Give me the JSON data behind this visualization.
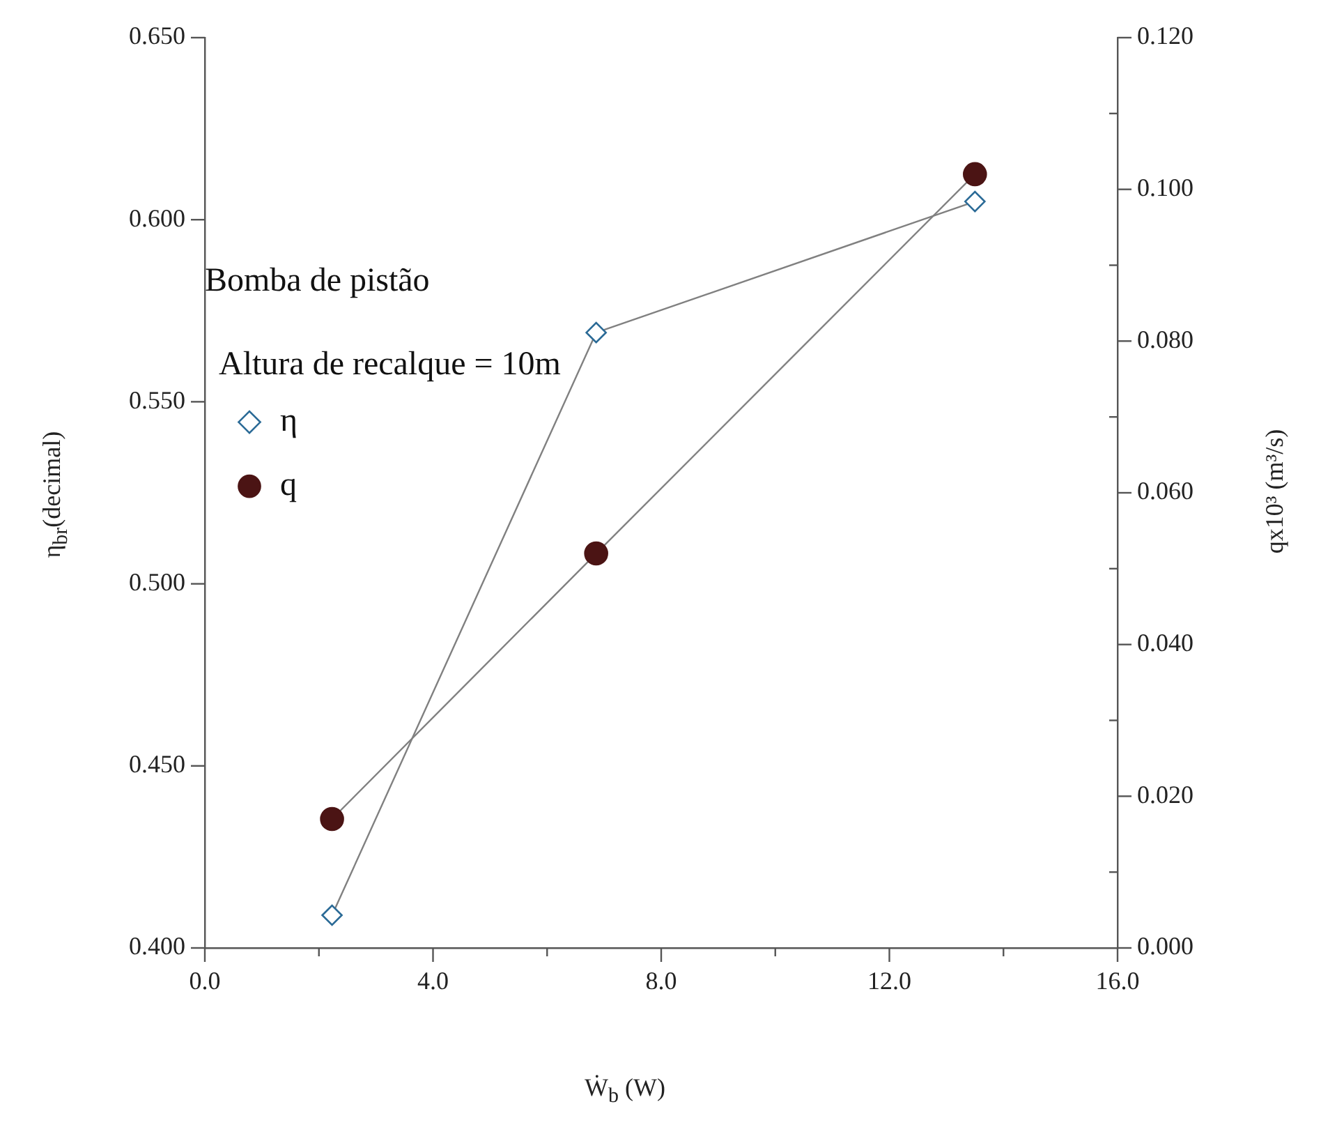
{
  "chart_data": {
    "type": "line",
    "xlabel": "Ẇ$_{b}$ (W)",
    "ylabel": "η$_{br}$(decimal)",
    "y2label": "qx10³ (m³/s)",
    "legend_title": "Bomba de pistão",
    "annotations": [
      "Altura de recalque = 10m"
    ],
    "legend": "left",
    "x": [
      2.23,
      6.86,
      13.5
    ],
    "series": [
      {
        "name": "η",
        "type": "line",
        "marker": "diamond",
        "color": "#2a6a96",
        "values": [
          0.409,
          0.569,
          0.605
        ]
      },
      {
        "name": "q",
        "type": "line",
        "marker": "circle",
        "axis": "y2",
        "color": "#4b1414",
        "values": [
          0.017,
          0.052,
          0.102
        ]
      }
    ],
    "xlim": [
      0,
      16
    ],
    "xticks": [
      {
        "value": 0,
        "label": "0.0"
      },
      {
        "value": 2,
        "label": null
      },
      {
        "value": 4,
        "label": "4.0"
      },
      {
        "value": 6,
        "label": null
      },
      {
        "value": 8,
        "label": "8.0"
      },
      {
        "value": 10,
        "label": null
      },
      {
        "value": 12,
        "label": "12.0"
      },
      {
        "value": 14,
        "label": null
      },
      {
        "value": 16,
        "label": "16.0"
      }
    ],
    "ylim": [
      0.4,
      0.65
    ],
    "yticks": [
      {
        "value": 0.4,
        "label": "0.400"
      },
      {
        "value": 0.45,
        "label": "0.450"
      },
      {
        "value": 0.5,
        "label": "0.500"
      },
      {
        "value": 0.55,
        "label": "0.550"
      },
      {
        "value": 0.6,
        "label": "0.600"
      },
      {
        "value": 0.65,
        "label": "0.650"
      }
    ],
    "y2lim": [
      0,
      0.12
    ],
    "y2ticks": [
      {
        "value": 0,
        "label": "0.000"
      },
      {
        "value": 0.01,
        "label": null
      },
      {
        "value": 0.02,
        "label": "0.020"
      },
      {
        "value": 0.03,
        "label": null
      },
      {
        "value": 0.04,
        "label": "0.040"
      },
      {
        "value": 0.05,
        "label": null
      },
      {
        "value": 0.06,
        "label": "0.060"
      },
      {
        "value": 0.07,
        "label": null
      },
      {
        "value": 0.08,
        "label": "0.080"
      },
      {
        "value": 0.09,
        "label": null
      },
      {
        "value": 0.1,
        "label": "0.100"
      },
      {
        "value": 0.11,
        "label": null
      },
      {
        "value": 0.12,
        "label": "0.120"
      }
    ]
  }
}
